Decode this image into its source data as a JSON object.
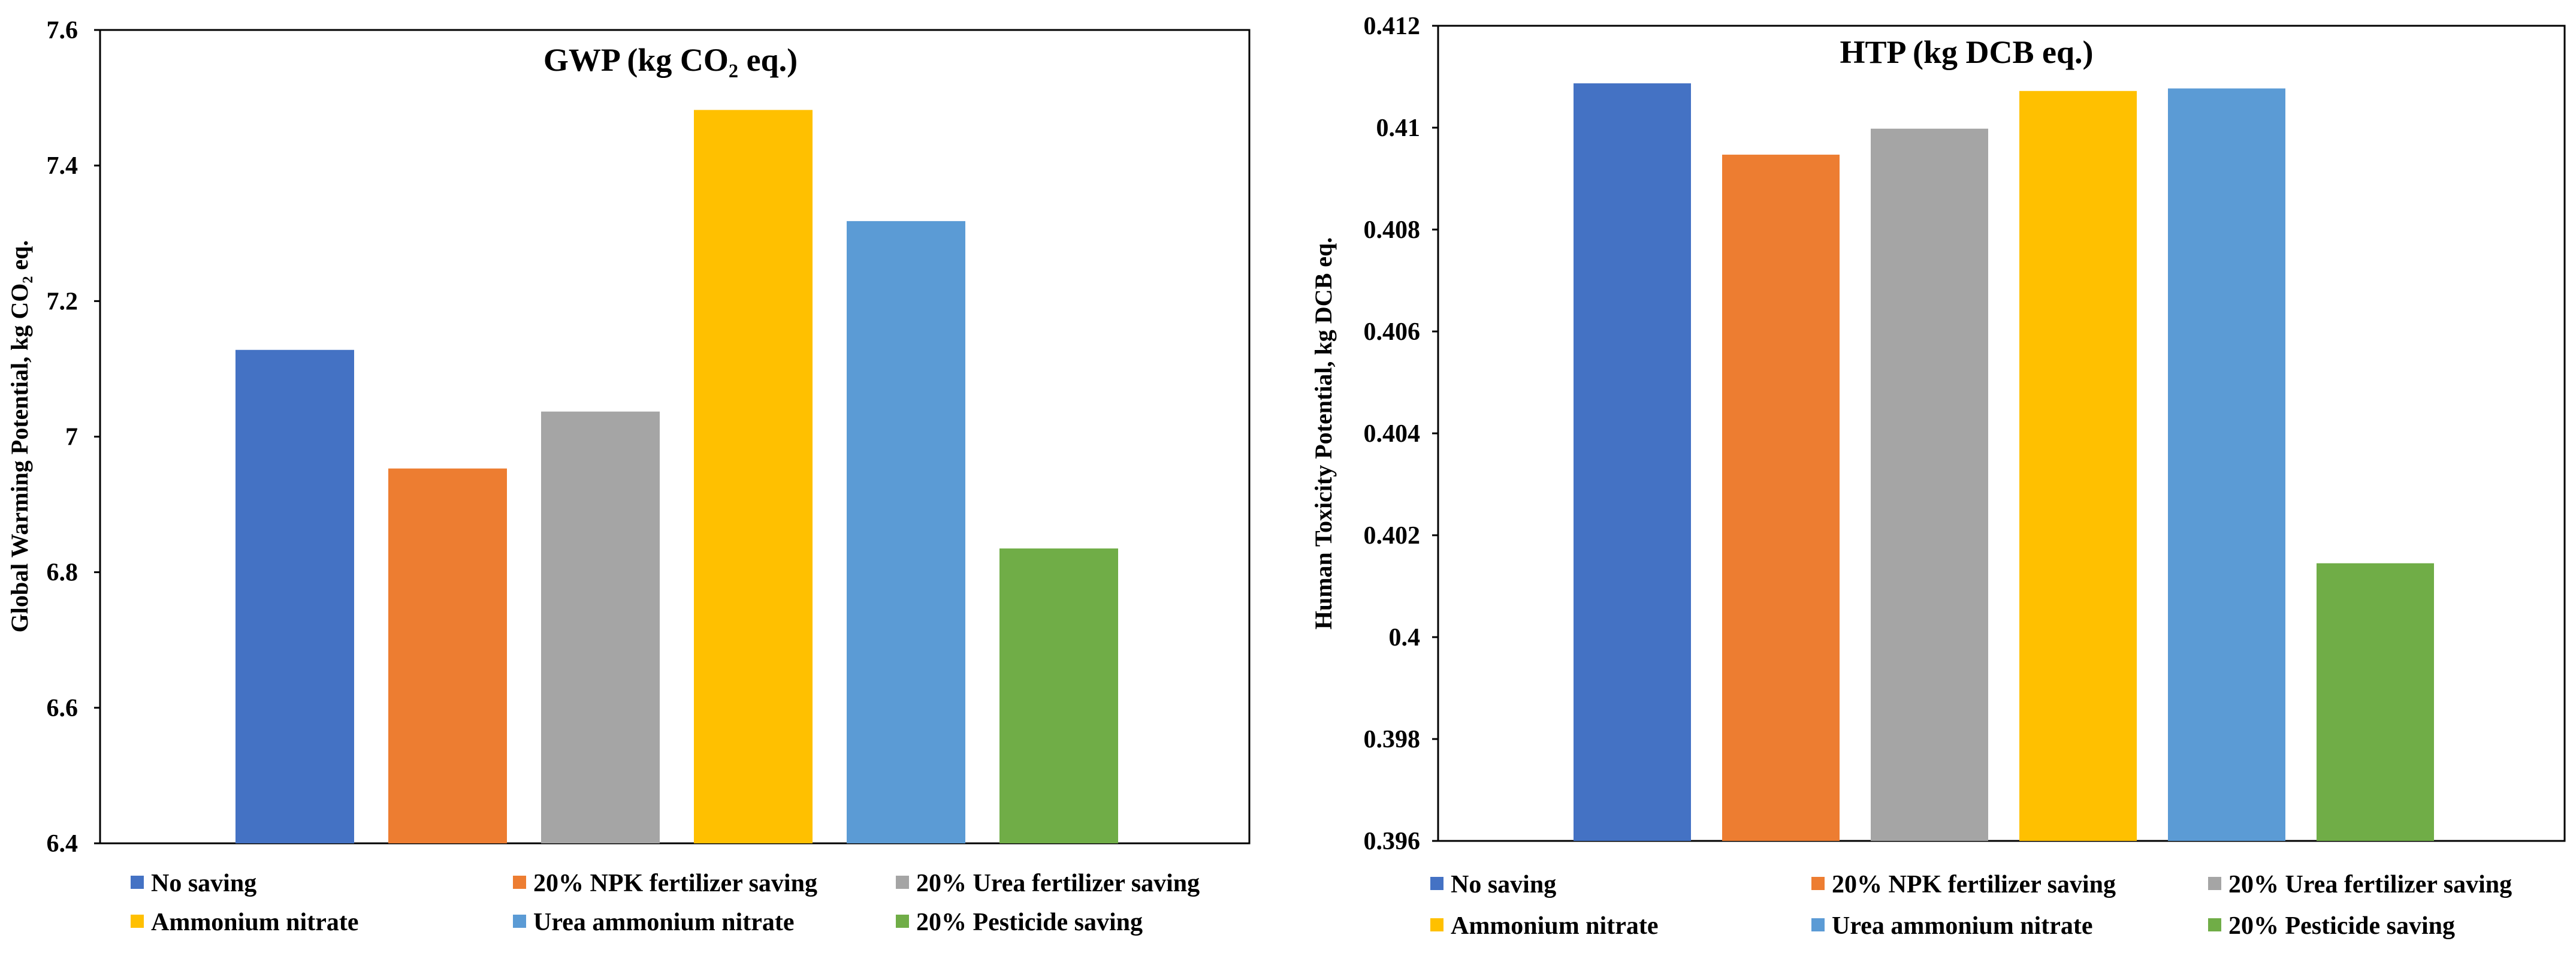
{
  "chart_data": [
    {
      "type": "bar",
      "title": "GWP (kg CO₂ eq.)",
      "xlabel": "",
      "ylabel": "Global Warming Potential, kg CO₂ eq.",
      "ylim": [
        6.4,
        7.6
      ],
      "yticks": [
        6.4,
        6.6,
        6.8,
        7,
        7.2,
        7.4,
        7.6
      ],
      "ytick_labels": [
        "6.4",
        "6.6",
        "6.8",
        "7",
        "7.2",
        "7.4",
        "7.6"
      ],
      "grid": false,
      "legend_position": "bottom",
      "series": [
        {
          "name": "No saving",
          "value": 7.128,
          "color": "#4472C4"
        },
        {
          "name": "20% NPK fertilizer saving",
          "value": 6.953,
          "color": "#ED7D31"
        },
        {
          "name": "20% Urea fertilizer saving",
          "value": 7.037,
          "color": "#A5A5A5"
        },
        {
          "name": "Ammonium nitrate",
          "value": 7.482,
          "color": "#FFC000"
        },
        {
          "name": "Urea ammonium nitrate",
          "value": 7.318,
          "color": "#5B9BD5"
        },
        {
          "name": "20% Pesticide saving",
          "value": 6.835,
          "color": "#70AD47"
        }
      ]
    },
    {
      "type": "bar",
      "title": "HTP (kg DCB eq.)",
      "xlabel": "",
      "ylabel": "Human Toxicity Potential, kg DCB eq.",
      "ylim": [
        0.396,
        0.412
      ],
      "yticks": [
        0.396,
        0.398,
        0.4,
        0.402,
        0.404,
        0.406,
        0.408,
        0.41,
        0.412
      ],
      "ytick_labels": [
        "0.396",
        "0.398",
        "0.4",
        "0.402",
        "0.404",
        "0.406",
        "0.408",
        "0.41",
        "0.412"
      ],
      "grid": false,
      "legend_position": "bottom",
      "series": [
        {
          "name": "No saving",
          "value": 0.41087,
          "color": "#4472C4"
        },
        {
          "name": "20% NPK fertilizer saving",
          "value": 0.40947,
          "color": "#ED7D31"
        },
        {
          "name": "20% Urea fertilizer saving",
          "value": 0.40998,
          "color": "#A5A5A5"
        },
        {
          "name": "Ammonium nitrate",
          "value": 0.41072,
          "color": "#FFC000"
        },
        {
          "name": "Urea ammonium nitrate",
          "value": 0.41077,
          "color": "#5B9BD5"
        },
        {
          "name": "20% Pesticide saving",
          "value": 0.40145,
          "color": "#70AD47"
        }
      ]
    }
  ]
}
